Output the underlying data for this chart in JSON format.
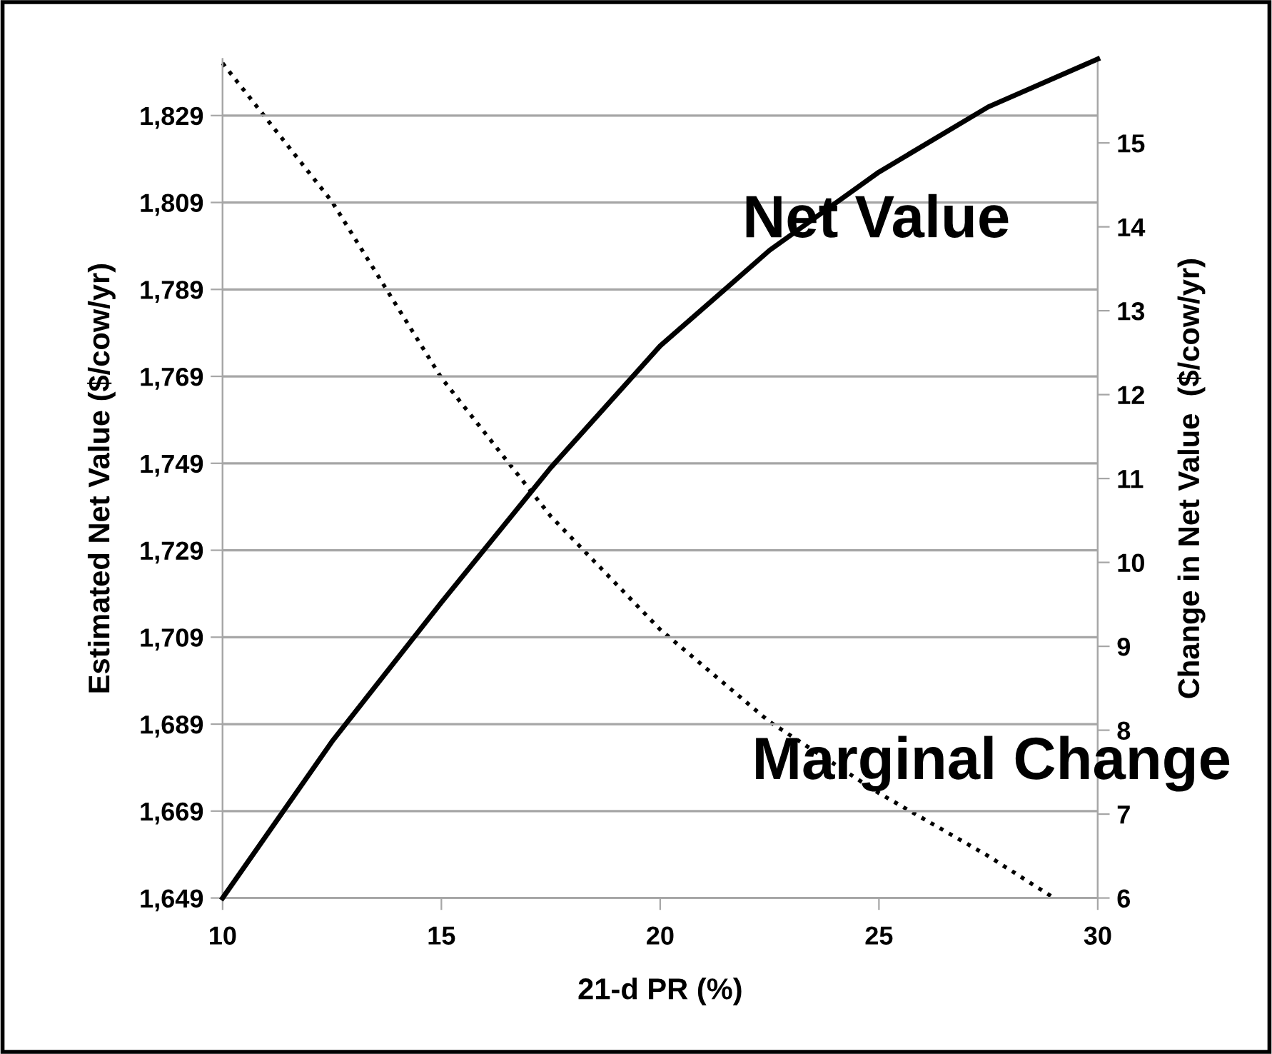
{
  "chart_data": {
    "type": "line",
    "xlabel": "21-d PR (%)",
    "ylabel": "Estimated Net Value ($/cow/yr)",
    "y2label": "Change in Net Value  ($/cow/yr)",
    "xlim": [
      10,
      30
    ],
    "xticks": [
      10,
      15,
      20,
      25,
      30
    ],
    "ylim": [
      1649,
      1842
    ],
    "yticks": [
      {
        "value": 1649,
        "label": "1,649"
      },
      {
        "value": 1669,
        "label": "1,669"
      },
      {
        "value": 1689,
        "label": "1,689"
      },
      {
        "value": 1709,
        "label": "1,709"
      },
      {
        "value": 1729,
        "label": "1,729"
      },
      {
        "value": 1749,
        "label": "1,749"
      },
      {
        "value": 1769,
        "label": "1,769"
      },
      {
        "value": 1789,
        "label": "1,789"
      },
      {
        "value": 1809,
        "label": "1,809"
      },
      {
        "value": 1829,
        "label": "1,829"
      }
    ],
    "y2lim": [
      6,
      16
    ],
    "y2ticks": [
      6,
      7,
      8,
      9,
      10,
      11,
      12,
      13,
      14,
      15
    ],
    "grid": "y",
    "legend": false,
    "series": [
      {
        "name": "Net Value",
        "color": "#000000",
        "line_style": "solid",
        "x": [
          10,
          12.5,
          15,
          17.5,
          20,
          22.5,
          25,
          27.5,
          30
        ],
        "values": [
          1649,
          1685,
          1717,
          1748,
          1776,
          1798,
          1816,
          1831,
          1842
        ]
      },
      {
        "name": "Marginal Change",
        "color": "#000000",
        "line_style": "dotted",
        "axis": "y2",
        "x": [
          10,
          12.5,
          15,
          17.5,
          20,
          22.5,
          25,
          27.5,
          29
        ],
        "values": [
          15.95,
          14.3,
          12.2,
          10.55,
          9.2,
          8.1,
          7.25,
          6.5,
          6.0
        ]
      }
    ]
  }
}
